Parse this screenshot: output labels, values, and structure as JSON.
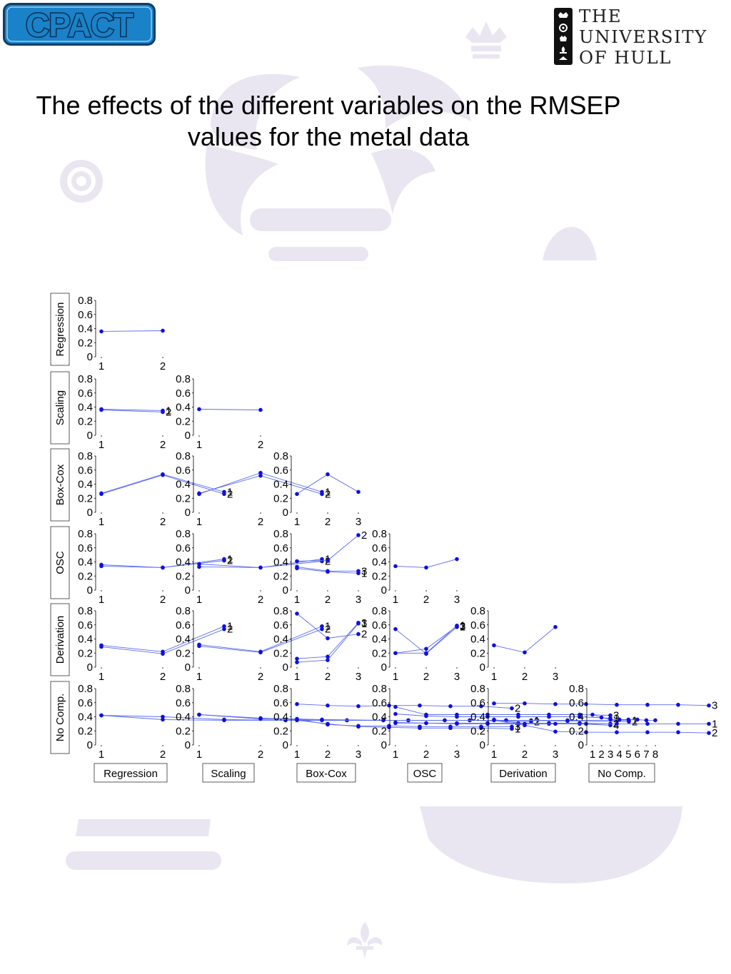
{
  "header": {
    "cpact_logo_text": "CPACT",
    "university_lines": [
      "THE",
      "UNIVERSITY",
      "OF HULL"
    ]
  },
  "title": "The effects of the different variables on the RMSEP values for the metal data",
  "colors": {
    "marker": "#1010dd",
    "line": "#5a6cf0",
    "watermark": "#e9e6f1",
    "logo_blue": "#1a82c8"
  },
  "chart_data": {
    "type": "scatter-matrix",
    "rows": [
      "Regression",
      "Scaling",
      "Box-Cox",
      "OSC",
      "Derivation",
      "No Comp."
    ],
    "columns": [
      "Regression",
      "Scaling",
      "Box-Cox",
      "OSC",
      "Derivation",
      "No Comp."
    ],
    "ylim": [
      0,
      0.8
    ],
    "y_ticks": [
      "0",
      "0.2",
      "0.4",
      "0.6",
      "0.8"
    ],
    "levels": {
      "Regression": 2,
      "Scaling": 2,
      "Box-Cox": 3,
      "OSC": 3,
      "Derivation": 3,
      "No Comp.": 8
    },
    "panels": [
      {
        "row": 0,
        "col": 0,
        "series": [
          {
            "values": [
              0.36,
              0.37
            ]
          }
        ]
      },
      {
        "row": 1,
        "col": 0,
        "series": [
          {
            "values": [
              0.37,
              0.35
            ],
            "label": "1"
          },
          {
            "values": [
              0.36,
              0.33
            ],
            "label": "2"
          }
        ]
      },
      {
        "row": 1,
        "col": 1,
        "series": [
          {
            "values": [
              0.37,
              0.36
            ]
          }
        ]
      },
      {
        "row": 2,
        "col": 0,
        "series": [
          {
            "values": [
              0.27,
              0.54,
              0.29
            ],
            "label": "1"
          },
          {
            "values": [
              0.26,
              0.53,
              0.26
            ],
            "label": "2"
          }
        ]
      },
      {
        "row": 2,
        "col": 1,
        "series": [
          {
            "values": [
              0.26,
              0.56,
              0.29
            ],
            "label": "1"
          },
          {
            "values": [
              0.27,
              0.52,
              0.26
            ],
            "label": "2"
          }
        ]
      },
      {
        "row": 2,
        "col": 2,
        "series": [
          {
            "values": [
              0.26,
              0.54,
              0.29
            ]
          }
        ]
      },
      {
        "row": 3,
        "col": 0,
        "series": [
          {
            "values": [
              0.36,
              0.32,
              0.44
            ],
            "label": "1"
          },
          {
            "values": [
              0.34,
              0.32,
              0.42
            ],
            "label": "2"
          }
        ]
      },
      {
        "row": 3,
        "col": 1,
        "series": [
          {
            "values": [
              0.37,
              0.32,
              0.44
            ],
            "label": "1"
          },
          {
            "values": [
              0.33,
              0.32,
              0.41
            ],
            "label": "2"
          }
        ]
      },
      {
        "row": 3,
        "col": 2,
        "series": [
          {
            "values": [
              0.41,
              0.42,
              0.78
            ],
            "label": "2"
          },
          {
            "values": [
              0.33,
              0.27,
              0.27
            ],
            "label": "3"
          },
          {
            "values": [
              0.31,
              0.26,
              0.24
            ],
            "label": "1"
          }
        ]
      },
      {
        "row": 3,
        "col": 3,
        "series": [
          {
            "values": [
              0.34,
              0.32,
              0.44
            ]
          }
        ]
      },
      {
        "row": 4,
        "col": 0,
        "series": [
          {
            "values": [
              0.31,
              0.22,
              0.58
            ],
            "label": "1"
          },
          {
            "values": [
              0.29,
              0.19,
              0.54
            ],
            "label": "2"
          }
        ]
      },
      {
        "row": 4,
        "col": 1,
        "series": [
          {
            "values": [
              0.32,
              0.22,
              0.58
            ],
            "label": "1"
          },
          {
            "values": [
              0.3,
              0.21,
              0.54
            ],
            "label": "2"
          }
        ]
      },
      {
        "row": 4,
        "col": 2,
        "series": [
          {
            "values": [
              0.76,
              0.41,
              0.47
            ],
            "label": "2"
          },
          {
            "values": [
              0.12,
              0.15,
              0.63
            ],
            "label": "3"
          },
          {
            "values": [
              0.07,
              0.1,
              0.62
            ],
            "label": "1"
          }
        ]
      },
      {
        "row": 4,
        "col": 3,
        "series": [
          {
            "values": [
              0.54,
              0.19,
              0.57
            ],
            "label": "2"
          },
          {
            "values": [
              0.2,
              0.26,
              0.58
            ],
            "label": "3"
          },
          {
            "values": [
              0.2,
              0.2,
              0.59
            ],
            "label": "1"
          }
        ]
      },
      {
        "row": 4,
        "col": 4,
        "series": [
          {
            "values": [
              0.31,
              0.21,
              0.57
            ]
          }
        ]
      },
      {
        "row": 5,
        "col": 0,
        "series": [
          {
            "values": [
              0.42,
              0.4,
              0.36,
              0.35,
              0.35,
              0.35,
              0.35,
              0.35
            ],
            "label": "1"
          },
          {
            "values": [
              0.42,
              0.36,
              0.35,
              0.35,
              0.35,
              0.35,
              0.35,
              0.33
            ],
            "label": "2"
          }
        ]
      },
      {
        "row": 5,
        "col": 1,
        "series": [
          {
            "values": [
              0.43,
              0.38,
              0.36,
              0.35,
              0.35,
              0.35,
              0.35,
              0.35
            ],
            "label": "1"
          },
          {
            "values": [
              0.43,
              0.37,
              0.35,
              0.35,
              0.35,
              0.35,
              0.34,
              0.33
            ],
            "label": "2"
          }
        ]
      },
      {
        "row": 5,
        "col": 2,
        "series": [
          {
            "values": [
              0.58,
              0.56,
              0.55,
              0.56,
              0.56,
              0.55,
              0.55,
              0.52
            ],
            "label": "2"
          },
          {
            "values": [
              0.37,
              0.29,
              0.27,
              0.27,
              0.26,
              0.26,
              0.26,
              0.26
            ],
            "label": "3"
          },
          {
            "values": [
              0.35,
              0.3,
              0.26,
              0.25,
              0.24,
              0.24,
              0.24,
              0.23
            ],
            "label": "1"
          }
        ]
      },
      {
        "row": 5,
        "col": 3,
        "series": [
          {
            "values": [
              0.54,
              0.43,
              0.43,
              0.43,
              0.43,
              0.43,
              0.43,
              0.42
            ],
            "label": "3"
          },
          {
            "values": [
              0.44,
              0.41,
              0.4,
              0.4,
              0.4,
              0.4,
              0.4,
              0.38
            ],
            "label": "1"
          },
          {
            "values": [
              0.32,
              0.31,
              0.31,
              0.31,
              0.31,
              0.31,
              0.31,
              0.3
            ],
            "label": "2"
          },
          {
            "values": [
              0.31,
              0.31,
              0.3,
              0.3,
              0.3,
              0.3,
              0.3,
              0.28
            ],
            "label": "4"
          }
        ]
      },
      {
        "row": 5,
        "col": 4,
        "series": [
          {
            "values": [
              0.59,
              0.59,
              0.58,
              0.58,
              0.57,
              0.57,
              0.57,
              0.56
            ],
            "label": "3"
          },
          {
            "values": [
              0.36,
              0.3,
              0.3,
              0.3,
              0.3,
              0.3,
              0.3,
              0.3
            ],
            "label": "1"
          },
          {
            "values": [
              0.35,
              0.28,
              0.19,
              0.18,
              0.18,
              0.18,
              0.18,
              0.17
            ],
            "label": "2"
          }
        ]
      },
      {
        "row": 5,
        "col": 5,
        "series": [
          {
            "values": [
              0.43,
              0.39,
              0.36,
              0.36,
              0.36,
              0.36,
              0.35,
              0.35
            ]
          }
        ]
      }
    ]
  }
}
